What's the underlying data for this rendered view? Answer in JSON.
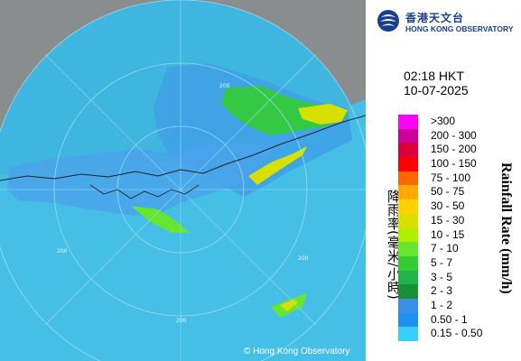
{
  "header": {
    "org_name_cn": "香港天文台",
    "org_name_en": "HONG KONG OBSERVATORY",
    "time": "02:18 HKT",
    "date": "10-07-2025"
  },
  "legend": {
    "title_en": "Rainfall Rate (mm/h)",
    "title_cn": "降雨率(毫米/小時)",
    "items": [
      {
        "label": ">300",
        "color": "#ff00ff"
      },
      {
        "label": "200 - 300",
        "color": "#cc0099"
      },
      {
        "label": "150 - 200",
        "color": "#d9003d"
      },
      {
        "label": "100 - 150",
        "color": "#ff0000"
      },
      {
        "label": "75 - 100",
        "color": "#ff6600"
      },
      {
        "label": "50 - 75",
        "color": "#ffaa00"
      },
      {
        "label": "30 - 50",
        "color": "#ffd200"
      },
      {
        "label": "15 - 30",
        "color": "#d8e000"
      },
      {
        "label": "10 - 15",
        "color": "#b2ee00"
      },
      {
        "label": "7 - 10",
        "color": "#66e62e"
      },
      {
        "label": "5 - 7",
        "color": "#33cc33"
      },
      {
        "label": "3 - 5",
        "color": "#22b34a"
      },
      {
        "label": "2 - 3",
        "color": "#1a8f3a"
      },
      {
        "label": "1 - 2",
        "color": "#3d8fe6"
      },
      {
        "label": "0.50 - 1",
        "color": "#1f8ff0"
      },
      {
        "label": "0.15 - 0.50",
        "color": "#38d0ff"
      }
    ]
  },
  "map": {
    "range_ring_labels": [
      "200",
      "200",
      "200",
      "200"
    ],
    "colors": {
      "land": "#8a8d8e",
      "coverage": "#3fb6e0",
      "ring": "#9bd8f0"
    }
  },
  "copyright": "© Hong Kong Observatory"
}
